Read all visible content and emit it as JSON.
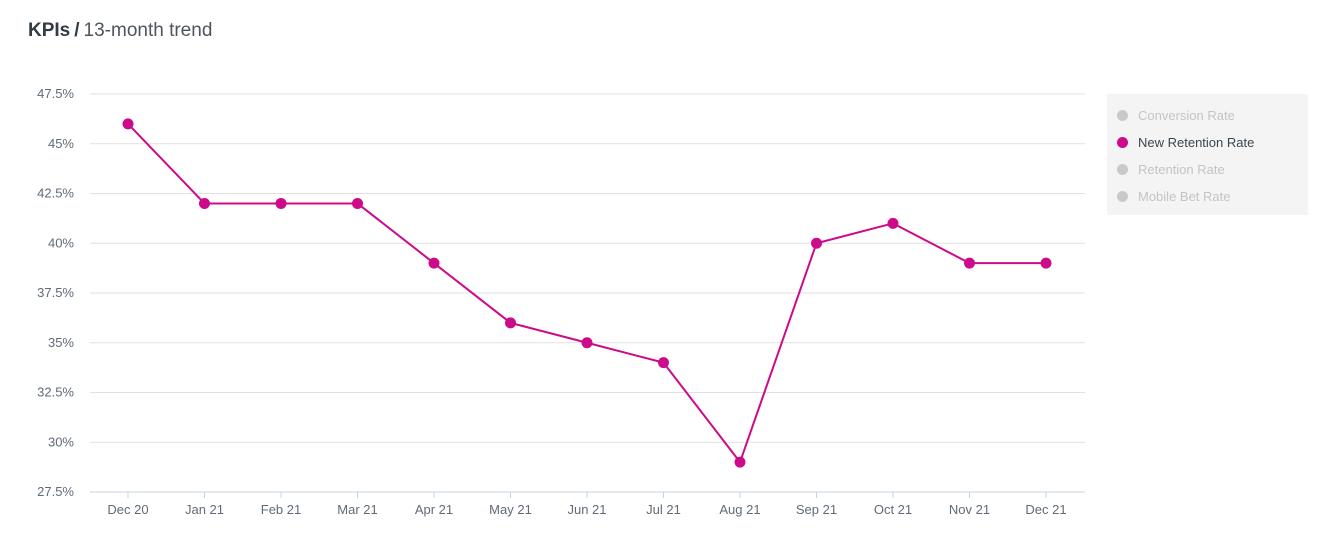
{
  "header": {
    "title": "KPIs",
    "separator": "/",
    "subtitle": "13-month trend"
  },
  "legend": {
    "items": [
      {
        "label": "Conversion Rate",
        "active": false
      },
      {
        "label": "New Retention Rate",
        "active": true
      },
      {
        "label": "Retention Rate",
        "active": false
      },
      {
        "label": "Mobile Bet Rate",
        "active": false
      }
    ]
  },
  "colors": {
    "series": "#cc0a8a",
    "inactive": "#c9c9c9",
    "grid": "#e1e1e1",
    "axis": "#c6d3df"
  },
  "chart_data": {
    "type": "line",
    "title": "",
    "xlabel": "",
    "ylabel": "",
    "categories": [
      "Dec 20",
      "Jan 21",
      "Feb 21",
      "Mar 21",
      "Apr 21",
      "May 21",
      "Jun 21",
      "Jul 21",
      "Aug 21",
      "Sep 21",
      "Oct 21",
      "Nov 21",
      "Dec 21"
    ],
    "y_ticks": [
      "27.5%",
      "30%",
      "32.5%",
      "35%",
      "37.5%",
      "40%",
      "42.5%",
      "45%",
      "47.5%"
    ],
    "ylim": [
      27.5,
      47.5
    ],
    "y_unit": "%",
    "grid": true,
    "legend_position": "right",
    "series": [
      {
        "name": "New Retention Rate",
        "values": [
          46,
          42,
          42,
          42,
          39,
          36,
          35,
          34,
          29,
          40,
          41,
          39,
          39
        ]
      }
    ]
  }
}
